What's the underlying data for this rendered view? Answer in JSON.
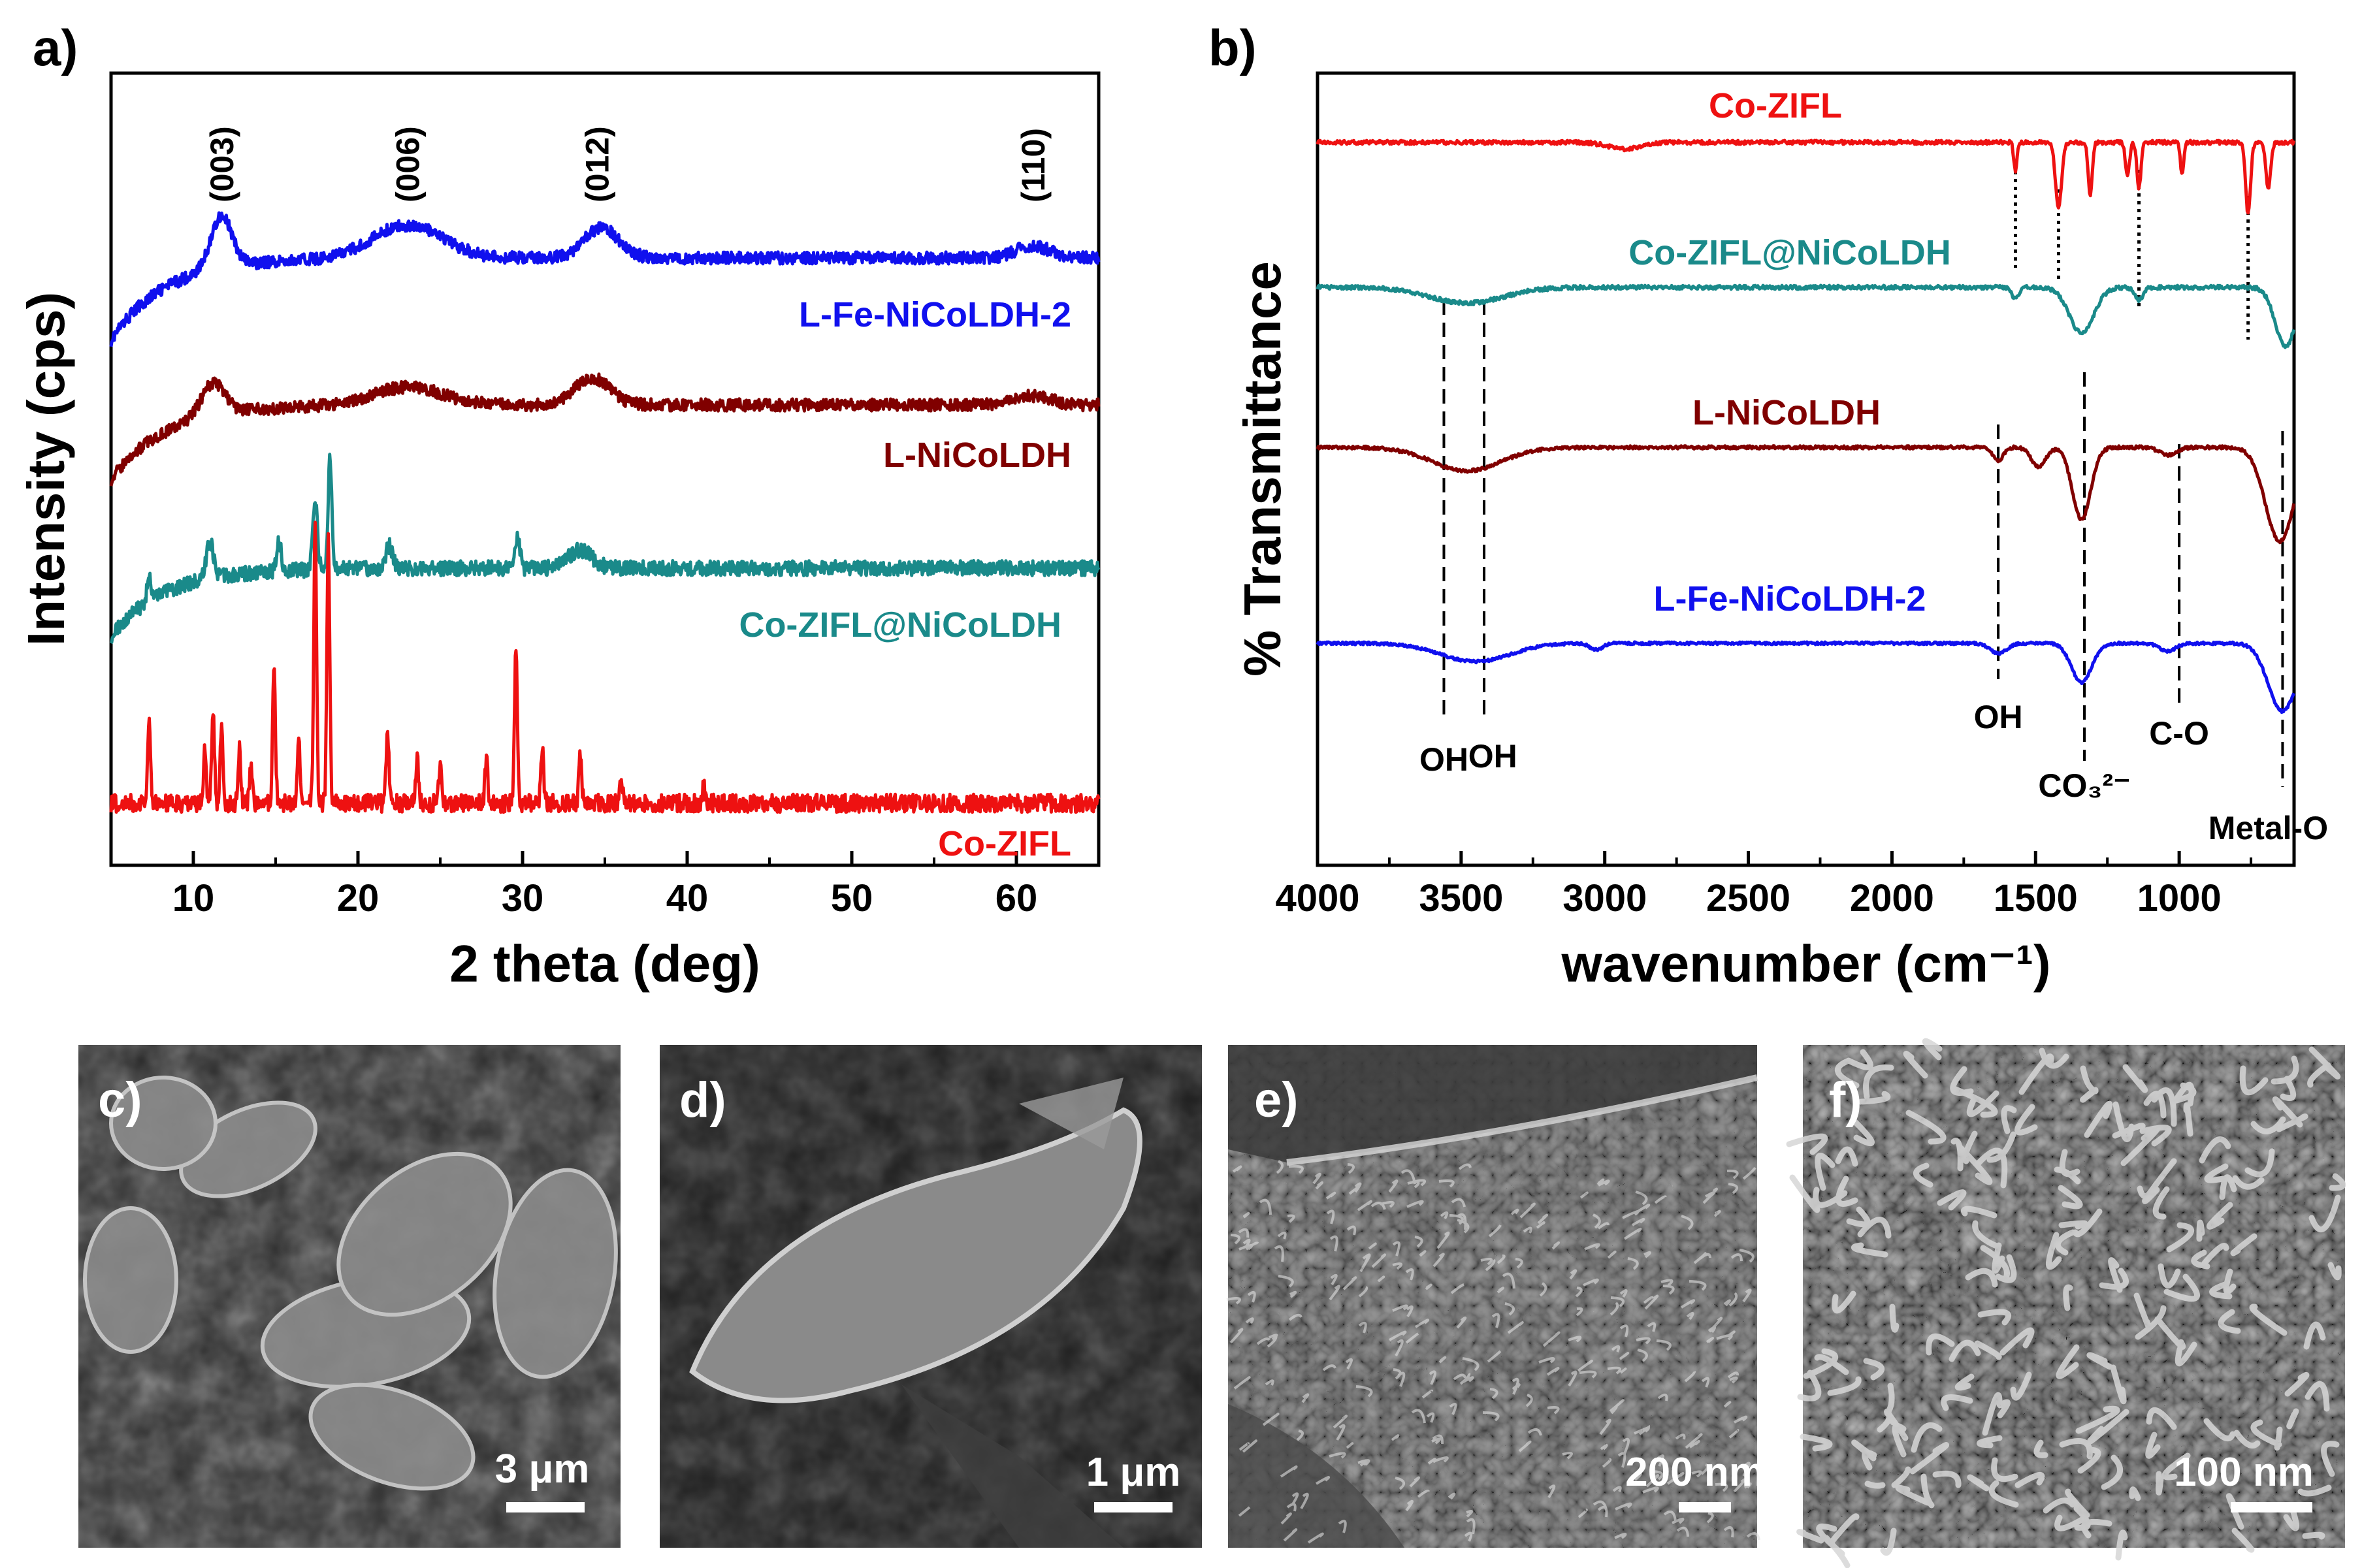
{
  "panels": {
    "a": "a)",
    "b": "b)",
    "c": "c)",
    "d": "d)",
    "e": "e)",
    "f": "f)"
  },
  "sem": [
    {
      "label": "c)",
      "scale": "3 μm",
      "style": "flakes"
    },
    {
      "label": "d)",
      "scale": "1 μm",
      "style": "single-flake"
    },
    {
      "label": "e)",
      "scale": "200 nm",
      "style": "wrinkled-surface"
    },
    {
      "label": "f)",
      "scale": "100 nm",
      "style": "nanosheet-network"
    }
  ],
  "chart_data": [
    {
      "type": "line",
      "panel": "a)",
      "title": "",
      "xlabel": "2 theta (deg)",
      "ylabel": "Intensity (cps)",
      "xlim": [
        5,
        65
      ],
      "xticks": [
        10,
        20,
        30,
        40,
        50,
        60
      ],
      "yticks": [],
      "series": [
        {
          "name": "L-Fe-NiCoLDH-2",
          "color": "#1010ee",
          "offset": 3,
          "peaks": [
            {
              "x": 11.7,
              "h": 0.35,
              "w": 0.9
            },
            {
              "x": 23,
              "h": 0.22,
              "w": 3
            },
            {
              "x": 34.8,
              "h": 0.2,
              "w": 1.5
            },
            {
              "x": 61,
              "h": 0.08,
              "w": 1.5
            }
          ],
          "baseline_start": -0.55,
          "noise": 0.04
        },
        {
          "name": "L-NiCoLDH",
          "color": "#800000",
          "offset": 2,
          "peaks": [
            {
              "x": 11.2,
              "h": 0.22,
              "w": 1
            },
            {
              "x": 23,
              "h": 0.12,
              "w": 3
            },
            {
              "x": 34.2,
              "h": 0.18,
              "w": 1.5
            },
            {
              "x": 61,
              "h": 0.06,
              "w": 1.5
            }
          ],
          "baseline_start": -0.5,
          "noise": 0.04
        },
        {
          "name": "Co-ZIFL@NiCoLDH",
          "color": "#1a8a8a",
          "offset": 1,
          "peaks": [
            {
              "x": 7.3,
              "h": 0.2,
              "w": 0.15
            },
            {
              "x": 11,
              "h": 0.25,
              "w": 0.3
            },
            {
              "x": 15.2,
              "h": 0.2,
              "w": 0.2
            },
            {
              "x": 17.4,
              "h": 0.45,
              "w": 0.2
            },
            {
              "x": 18.3,
              "h": 0.75,
              "w": 0.15
            },
            {
              "x": 21.9,
              "h": 0.15,
              "w": 0.3
            },
            {
              "x": 29.7,
              "h": 0.22,
              "w": 0.2
            },
            {
              "x": 33.5,
              "h": 0.12,
              "w": 1
            }
          ],
          "baseline_start": -0.45,
          "noise": 0.05
        },
        {
          "name": "Co-ZIFL",
          "color": "#ee1111",
          "offset": 0,
          "peaks": [
            {
              "x": 7.3,
              "h": 0.55,
              "w": 0.12
            },
            {
              "x": 10.7,
              "h": 0.35,
              "w": 0.12
            },
            {
              "x": 11.2,
              "h": 0.6,
              "w": 0.12
            },
            {
              "x": 11.7,
              "h": 0.5,
              "w": 0.12
            },
            {
              "x": 12.8,
              "h": 0.35,
              "w": 0.12
            },
            {
              "x": 13.5,
              "h": 0.25,
              "w": 0.12
            },
            {
              "x": 14.9,
              "h": 0.9,
              "w": 0.12
            },
            {
              "x": 16.4,
              "h": 0.4,
              "w": 0.12
            },
            {
              "x": 17.4,
              "h": 1.85,
              "w": 0.12
            },
            {
              "x": 18.2,
              "h": 1.75,
              "w": 0.12
            },
            {
              "x": 21.8,
              "h": 0.45,
              "w": 0.12
            },
            {
              "x": 23.6,
              "h": 0.3,
              "w": 0.12
            },
            {
              "x": 25,
              "h": 0.25,
              "w": 0.12
            },
            {
              "x": 27.8,
              "h": 0.3,
              "w": 0.12
            },
            {
              "x": 29.6,
              "h": 1.05,
              "w": 0.12
            },
            {
              "x": 31.2,
              "h": 0.35,
              "w": 0.12
            },
            {
              "x": 33.5,
              "h": 0.3,
              "w": 0.12
            },
            {
              "x": 36,
              "h": 0.15,
              "w": 0.12
            },
            {
              "x": 41,
              "h": 0.12,
              "w": 0.12
            }
          ],
          "baseline_start": 0,
          "noise": 0.06
        }
      ],
      "annotations": [
        {
          "text": "(003)",
          "x": 11.7
        },
        {
          "text": "(006)",
          "x": 23
        },
        {
          "text": "(012)",
          "x": 34.5
        },
        {
          "text": "(110)",
          "x": 61
        }
      ]
    },
    {
      "type": "line",
      "panel": "b)",
      "title": "",
      "xlabel": "wavenumber (cm⁻¹)",
      "ylabel": "% Transmittance",
      "xlim": [
        4000,
        600
      ],
      "xticks": [
        4000,
        3500,
        3000,
        2500,
        2000,
        1500,
        1000
      ],
      "yticks": [],
      "series": [
        {
          "name": "Co-ZIFL",
          "color": "#ee1111",
          "offset": 3,
          "bands": [
            {
              "x": 2930,
              "d": 0.05,
              "w": 80
            },
            {
              "x": 1570,
              "d": 0.22,
              "w": 8
            },
            {
              "x": 1420,
              "d": 0.5,
              "w": 15
            },
            {
              "x": 1310,
              "d": 0.4,
              "w": 10
            },
            {
              "x": 1180,
              "d": 0.25,
              "w": 10
            },
            {
              "x": 1140,
              "d": 0.35,
              "w": 10
            },
            {
              "x": 990,
              "d": 0.25,
              "w": 8
            },
            {
              "x": 760,
              "d": 0.55,
              "w": 12
            },
            {
              "x": 690,
              "d": 0.35,
              "w": 12
            }
          ],
          "noise": 0.015
        },
        {
          "name": "Co-ZIFL@NiCoLDH",
          "color": "#1a8a8a",
          "offset": 2,
          "bands": [
            {
              "x": 3480,
              "d": 0.12,
              "w": 180
            },
            {
              "x": 1570,
              "d": 0.08,
              "w": 20
            },
            {
              "x": 1340,
              "d": 0.35,
              "w": 60
            },
            {
              "x": 1140,
              "d": 0.1,
              "w": 20
            },
            {
              "x": 630,
              "d": 0.45,
              "w": 50
            }
          ],
          "noise": 0.015
        },
        {
          "name": "L-NiCoLDH",
          "color": "#800000",
          "offset": 1,
          "bands": [
            {
              "x": 3480,
              "d": 0.18,
              "w": 170
            },
            {
              "x": 1630,
              "d": 0.1,
              "w": 25
            },
            {
              "x": 1490,
              "d": 0.15,
              "w": 35
            },
            {
              "x": 1340,
              "d": 0.55,
              "w": 45
            },
            {
              "x": 1040,
              "d": 0.06,
              "w": 40
            },
            {
              "x": 650,
              "d": 0.72,
              "w": 70
            }
          ],
          "noise": 0.012
        },
        {
          "name": "L-Fe-NiCoLDH-2",
          "color": "#1010ee",
          "offset": 0,
          "bands": [
            {
              "x": 3450,
              "d": 0.14,
              "w": 170
            },
            {
              "x": 3030,
              "d": 0.05,
              "w": 30
            },
            {
              "x": 1630,
              "d": 0.08,
              "w": 40
            },
            {
              "x": 1340,
              "d": 0.3,
              "w": 50
            },
            {
              "x": 1040,
              "d": 0.06,
              "w": 40
            },
            {
              "x": 640,
              "d": 0.52,
              "w": 70
            }
          ],
          "noise": 0.01
        }
      ],
      "annotations": [
        {
          "text": "OH",
          "x": 3560
        },
        {
          "text": "OH",
          "x": 3420
        },
        {
          "text": "OH",
          "x": 1630
        },
        {
          "text": "CO₃²⁻",
          "x": 1330
        },
        {
          "text": "C-O",
          "x": 1000
        },
        {
          "text": "Metal-O",
          "x": 640
        }
      ]
    }
  ]
}
